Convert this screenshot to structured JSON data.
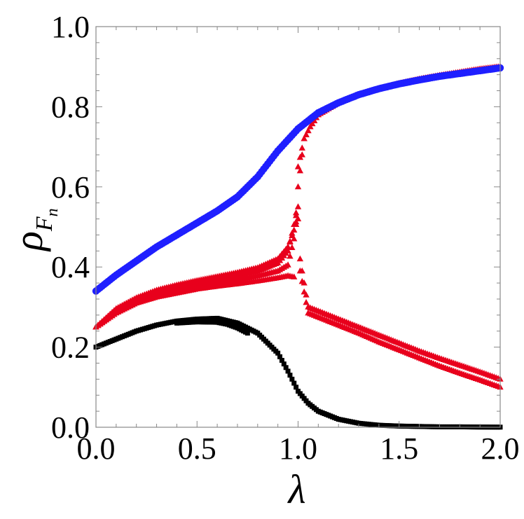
{
  "chart_data": {
    "type": "scatter",
    "xlabel": "λ",
    "ylabel": "ρ",
    "ylabel_sub": "F",
    "ylabel_subsub": "n",
    "xlim": [
      0,
      2
    ],
    "ylim": [
      0,
      1
    ],
    "xticks": [
      "0.0",
      "0.5",
      "1.0",
      "1.5",
      "2.0"
    ],
    "yticks": [
      "0.0",
      "0.2",
      "0.4",
      "0.6",
      "0.8",
      "1.0"
    ],
    "grid": false,
    "legend": "none",
    "colors": {
      "blue": "#1f1fff",
      "red": "#e8001c",
      "black": "#000000"
    },
    "series": [
      {
        "marker": "circle",
        "color": "#1f1fff",
        "x": [
          0.0,
          0.1,
          0.2,
          0.3,
          0.4,
          0.5,
          0.6,
          0.7,
          0.8,
          0.9,
          1.0,
          1.1,
          1.2,
          1.3,
          1.4,
          1.5,
          1.6,
          1.7,
          1.8,
          1.9,
          2.0
        ],
        "y": [
          0.34,
          0.38,
          0.415,
          0.45,
          0.48,
          0.51,
          0.54,
          0.575,
          0.625,
          0.69,
          0.745,
          0.785,
          0.81,
          0.83,
          0.845,
          0.857,
          0.867,
          0.876,
          0.883,
          0.89,
          0.897
        ]
      },
      {
        "marker": "triangle",
        "color": "#e8001c",
        "x": [
          0.0,
          0.1,
          0.2,
          0.3,
          0.4,
          0.5,
          0.6,
          0.7,
          0.8,
          0.9,
          0.95,
          0.98,
          1.0,
          1.03,
          1.06,
          1.1,
          1.2,
          1.3,
          1.4,
          1.5,
          1.6,
          1.7,
          1.8,
          1.9,
          2.0
        ],
        "y": [
          0.25,
          0.285,
          0.31,
          0.325,
          0.335,
          0.345,
          0.352,
          0.358,
          0.365,
          0.373,
          0.378,
          0.375,
          0.65,
          0.72,
          0.75,
          0.78,
          0.81,
          0.83,
          0.845,
          0.858,
          0.869,
          0.878,
          0.886,
          0.894,
          0.9
        ]
      },
      {
        "marker": "triangle",
        "color": "#e8001c",
        "x": [
          0.0,
          0.1,
          0.2,
          0.3,
          0.4,
          0.5,
          0.6,
          0.7,
          0.8,
          0.9,
          0.95,
          0.98,
          1.0,
          1.03,
          1.06,
          1.1,
          1.2,
          1.3,
          1.4,
          1.5,
          1.6,
          1.7,
          1.8,
          1.9,
          2.0
        ],
        "y": [
          0.25,
          0.29,
          0.315,
          0.33,
          0.342,
          0.352,
          0.36,
          0.368,
          0.378,
          0.39,
          0.405,
          0.47,
          0.6,
          0.72,
          0.75,
          0.78,
          0.81,
          0.83,
          0.845,
          0.858,
          0.869,
          0.878,
          0.886,
          0.894,
          0.9
        ]
      },
      {
        "marker": "triangle",
        "color": "#e8001c",
        "x": [
          0.0,
          0.1,
          0.2,
          0.3,
          0.4,
          0.5,
          0.6,
          0.7,
          0.8,
          0.9,
          0.95,
          1.0,
          1.01,
          1.05,
          1.1,
          1.2,
          1.3,
          1.4,
          1.5,
          1.6,
          1.7,
          1.8,
          1.9,
          2.0
        ],
        "y": [
          0.25,
          0.293,
          0.32,
          0.338,
          0.35,
          0.36,
          0.37,
          0.378,
          0.39,
          0.41,
          0.44,
          0.55,
          0.42,
          0.3,
          0.29,
          0.27,
          0.25,
          0.23,
          0.21,
          0.19,
          0.172,
          0.155,
          0.138,
          0.12
        ]
      },
      {
        "marker": "triangle",
        "color": "#e8001c",
        "x": [
          0.0,
          0.1,
          0.2,
          0.3,
          0.4,
          0.5,
          0.6,
          0.7,
          0.8,
          0.9,
          0.95,
          1.0,
          1.01,
          1.05,
          1.1,
          1.2,
          1.3,
          1.4,
          1.5,
          1.6,
          1.7,
          1.8,
          1.9,
          2.0
        ],
        "y": [
          0.25,
          0.296,
          0.323,
          0.342,
          0.355,
          0.366,
          0.376,
          0.386,
          0.398,
          0.42,
          0.45,
          0.52,
          0.39,
          0.285,
          0.275,
          0.255,
          0.235,
          0.213,
          0.193,
          0.173,
          0.153,
          0.135,
          0.118,
          0.1
        ]
      },
      {
        "marker": "square",
        "color": "#000000",
        "x": [
          0.0,
          0.1,
          0.2,
          0.3,
          0.4,
          0.5,
          0.6,
          0.7,
          0.8,
          0.9,
          0.95,
          1.0,
          1.05,
          1.1,
          1.2,
          1.3,
          1.4,
          1.5,
          1.6,
          1.7,
          1.8,
          1.9,
          2.0
        ],
        "y": [
          0.2,
          0.22,
          0.24,
          0.255,
          0.265,
          0.27,
          0.272,
          0.26,
          0.235,
          0.185,
          0.14,
          0.09,
          0.06,
          0.04,
          0.02,
          0.01,
          0.005,
          0.003,
          0.002,
          0.001,
          0.001,
          0.0005,
          0.0003
        ]
      },
      {
        "marker": "square",
        "color": "#000000",
        "x": [
          0.4,
          0.5,
          0.6,
          0.65,
          0.7,
          0.75
        ],
        "y": [
          0.26,
          0.263,
          0.262,
          0.257,
          0.248,
          0.235
        ]
      }
    ]
  }
}
